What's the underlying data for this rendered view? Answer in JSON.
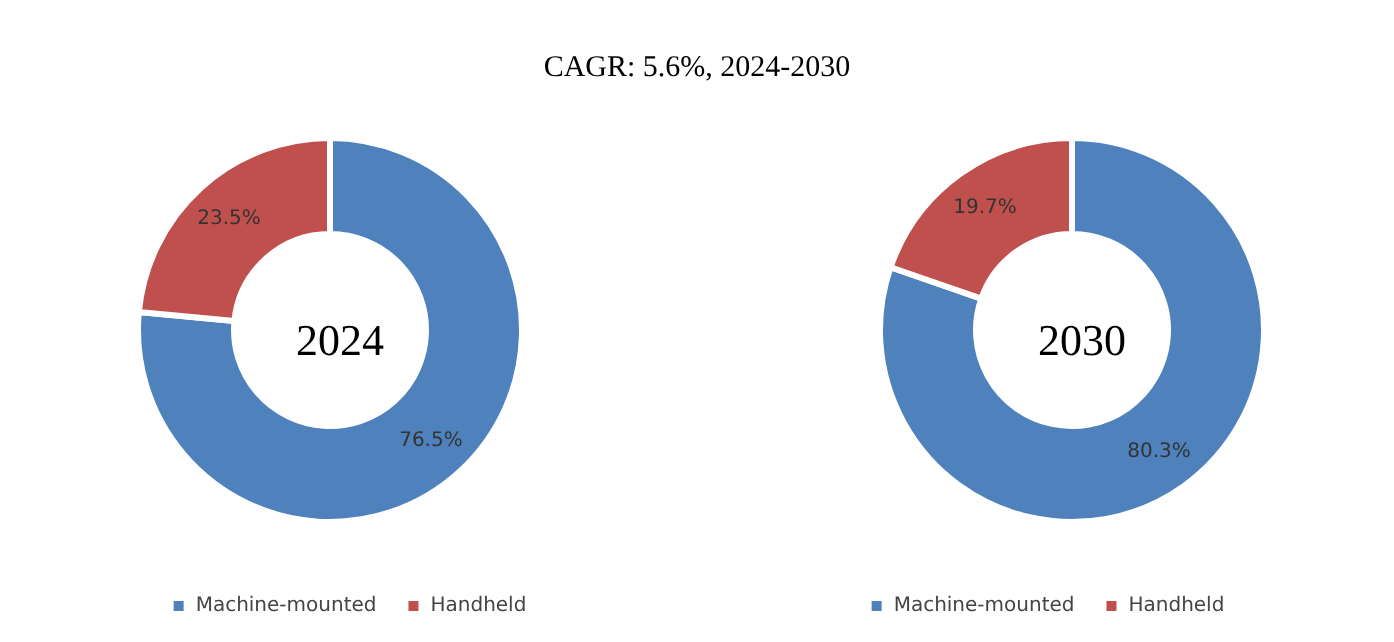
{
  "chart_data": [
    {
      "type": "donut",
      "title": "CAGR:   5.6%, 2024-2030",
      "annotations": [
        "2024"
      ],
      "categories": [
        "Machine-mounted",
        "Handheld"
      ],
      "values": [
        76.5,
        23.5
      ],
      "colors": [
        "#4f81bd",
        "#c0504d"
      ],
      "value_labels": [
        "76.5%",
        "23.5%"
      ],
      "legend": "bottom"
    },
    {
      "type": "donut",
      "annotations": [
        "2030"
      ],
      "categories": [
        "Machine-mounted",
        "Handheld"
      ],
      "values": [
        80.3,
        19.7
      ],
      "colors": [
        "#4f81bd",
        "#c0504d"
      ],
      "value_labels": [
        "80.3%",
        "19.7%"
      ],
      "legend": "bottom"
    }
  ]
}
